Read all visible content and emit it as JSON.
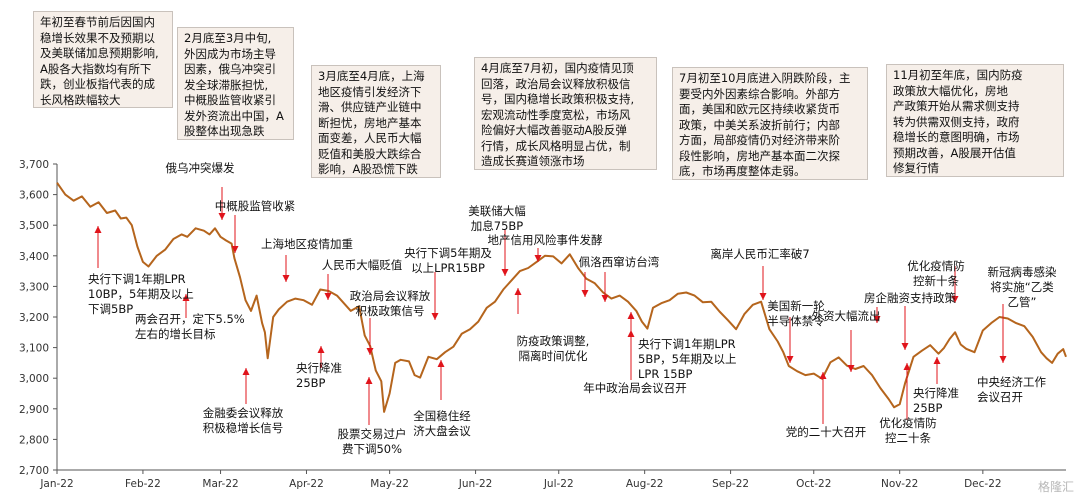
{
  "boxes": [
    {
      "text": "年初至春节前后因国内\n稳增长效果不及预期以\n及美联储加息预期影响,\nA股各大指数均有所下\n跌，创业板指代表的成\n长风格跌幅较大"
    },
    {
      "text": "2月底至3月中旬,\n外因成为市场主导\n因素，俄乌冲突引\n发全球滞胀担忧,\n中概股监管收紧引\n发外资流出中国，A\n股整体出现急跌"
    },
    {
      "text": "3月底至4月底，上海\n地区疫情引发经济下\n滑、供应链产业链中\n断担忧，房地产基本\n面变差，人民币大幅\n贬值和美股大跌综合\n影响，A股恐慌下跌"
    },
    {
      "text": "4月底至7月初，国内疫情见顶\n回落，政治局会议释放积极信\n号，国内稳增长政策积极支持,\n宏观流动性季度宽松，市场风\n险偏好大幅改善驱动A股反弹\n行情，成长风格明显占优，制\n造成长赛道领涨市场"
    },
    {
      "text": "7月初至10月底进入阴跌阶段，主\n要受内外因素综合影响。外部方\n面，美国和欧元区持续收紧货币\n政策，中美关系波折前行；内部\n方面，局部疫情仍对经济带来阶\n段性影响，房地产基本面二次探\n底，市场再度整体走弱。"
    },
    {
      "text": "11月初至年底，国内防疫\n政策放大幅优化，房地\n产政策开始从需求侧支持\n转为供需双侧支持，政府\n稳增长的意图明确，市场\n预期改善，A股展开估值\n修复行情"
    }
  ],
  "annotations": [
    {
      "lines": [
        "俄乌冲突爆发"
      ]
    },
    {
      "lines": [
        "中概股监管收紧"
      ]
    },
    {
      "lines": [
        "上海地区疫情加重"
      ]
    },
    {
      "lines": [
        "人民币大幅贬值"
      ]
    },
    {
      "lines": [
        "政治局会议释放",
        "积极政策信号"
      ]
    },
    {
      "lines": [
        "央行下调5年期及",
        "以上LPR15BP"
      ]
    },
    {
      "lines": [
        "美联储大幅",
        "加息75BP"
      ]
    },
    {
      "lines": [
        "地产信用风险事件发酵"
      ]
    },
    {
      "lines": [
        "佩洛西窜访台湾"
      ]
    },
    {
      "lines": [
        "离岸人民币汇率破7"
      ]
    },
    {
      "lines": [
        "美国新一轮",
        "半导体禁令"
      ]
    },
    {
      "lines": [
        "外资大幅流出"
      ]
    },
    {
      "lines": [
        "房企融资支持政策"
      ]
    },
    {
      "lines": [
        "优化疫情防",
        "控新十条"
      ]
    },
    {
      "lines": [
        "新冠病毒感染",
        "将实施“乙类",
        "乙管”"
      ]
    },
    {
      "lines": [
        "央行下调1年期LPR",
        "10BP，5年期及以上",
        "下调5BP"
      ]
    },
    {
      "lines": [
        "两会召开，定下5.5%",
        "左右的增长目标"
      ]
    },
    {
      "lines": [
        "金融委会议释放",
        "积极稳增长信号"
      ]
    },
    {
      "lines": [
        "央行降准",
        "25BP"
      ]
    },
    {
      "lines": [
        "股票交易过户",
        "费下调50%"
      ]
    },
    {
      "lines": [
        "全国稳住经",
        "济大盘会议"
      ]
    },
    {
      "lines": [
        "防疫政策调整,",
        "隔离时间优化"
      ]
    },
    {
      "lines": [
        "央行下调1年期LPR",
        "5BP，5年期及以上",
        "LPR 15BP"
      ]
    },
    {
      "lines": [
        "年中政治局会议召开"
      ]
    },
    {
      "lines": [
        "党的二十大召开"
      ]
    },
    {
      "lines": [
        "优化疫情防",
        "控二十条"
      ]
    },
    {
      "lines": [
        "央行降准",
        "25BP"
      ]
    },
    {
      "lines": [
        "中央经济工作",
        "会议召开"
      ]
    }
  ],
  "chart_data": {
    "type": "line",
    "title": "",
    "xlabel": "",
    "ylabel": "",
    "line_color": "#b5651d",
    "arrow_color": "#e0141b",
    "ylim": [
      2700,
      3700
    ],
    "y_ticks": [
      "3,700",
      "3,600",
      "3,500",
      "3,400",
      "3,300",
      "3,200",
      "3,100",
      "3,000",
      "2,900",
      "2,800",
      "2,700"
    ],
    "y_tick_values": [
      3700,
      3600,
      3500,
      3400,
      3300,
      3200,
      3100,
      3000,
      2900,
      2800,
      2700
    ],
    "x_ticks": [
      "Jan-22",
      "Feb-22",
      "Mar-22",
      "Apr-22",
      "May-22",
      "Jun-22",
      "Jul-22",
      "Aug-22",
      "Sep-22",
      "Oct-22",
      "Nov-22",
      "Dec-22"
    ],
    "x_tick_values": [
      0,
      31,
      59,
      90,
      120,
      151,
      181,
      212,
      243,
      273,
      304,
      334
    ],
    "x_domain": [
      0,
      364
    ],
    "series": [
      {
        "values": [
          [
            0,
            3639
          ],
          [
            3,
            3600
          ],
          [
            6,
            3580
          ],
          [
            9,
            3594
          ],
          [
            12,
            3560
          ],
          [
            15,
            3575
          ],
          [
            18,
            3540
          ],
          [
            21,
            3548
          ],
          [
            23,
            3522
          ],
          [
            25,
            3525
          ],
          [
            27,
            3500
          ],
          [
            29,
            3430
          ],
          [
            31,
            3380
          ],
          [
            33,
            3365
          ],
          [
            36,
            3400
          ],
          [
            39,
            3420
          ],
          [
            42,
            3455
          ],
          [
            45,
            3470
          ],
          [
            47,
            3462
          ],
          [
            50,
            3490
          ],
          [
            53,
            3482
          ],
          [
            55,
            3470
          ],
          [
            57,
            3490
          ],
          [
            59,
            3462
          ],
          [
            61,
            3450
          ],
          [
            63,
            3440
          ],
          [
            64,
            3392
          ],
          [
            66,
            3330
          ],
          [
            68,
            3255
          ],
          [
            70,
            3220
          ],
          [
            72,
            3270
          ],
          [
            74,
            3180
          ],
          [
            75,
            3150
          ],
          [
            76,
            3065
          ],
          [
            78,
            3200
          ],
          [
            80,
            3225
          ],
          [
            83,
            3250
          ],
          [
            86,
            3260
          ],
          [
            89,
            3255
          ],
          [
            92,
            3240
          ],
          [
            95,
            3290
          ],
          [
            98,
            3285
          ],
          [
            101,
            3270
          ],
          [
            103,
            3250
          ],
          [
            106,
            3220
          ],
          [
            109,
            3235
          ],
          [
            111,
            3140
          ],
          [
            113,
            3105
          ],
          [
            115,
            3025
          ],
          [
            117,
            2990
          ],
          [
            118,
            2890
          ],
          [
            120,
            2950
          ],
          [
            122,
            3050
          ],
          [
            124,
            3060
          ],
          [
            127,
            3055
          ],
          [
            129,
            3010
          ],
          [
            131,
            3002
          ],
          [
            134,
            3070
          ],
          [
            137,
            3062
          ],
          [
            140,
            3085
          ],
          [
            143,
            3103
          ],
          [
            146,
            3145
          ],
          [
            149,
            3160
          ],
          [
            152,
            3185
          ],
          [
            155,
            3230
          ],
          [
            158,
            3250
          ],
          [
            161,
            3290
          ],
          [
            164,
            3320
          ],
          [
            167,
            3350
          ],
          [
            170,
            3360
          ],
          [
            173,
            3380
          ],
          [
            176,
            3400
          ],
          [
            179,
            3398
          ],
          [
            182,
            3375
          ],
          [
            185,
            3405
          ],
          [
            188,
            3360
          ],
          [
            191,
            3325
          ],
          [
            194,
            3310
          ],
          [
            197,
            3280
          ],
          [
            200,
            3260
          ],
          [
            203,
            3270
          ],
          [
            206,
            3250
          ],
          [
            209,
            3220
          ],
          [
            211,
            3185
          ],
          [
            213,
            3162
          ],
          [
            215,
            3230
          ],
          [
            218,
            3245
          ],
          [
            221,
            3255
          ],
          [
            224,
            3276
          ],
          [
            227,
            3280
          ],
          [
            230,
            3270
          ],
          [
            233,
            3248
          ],
          [
            236,
            3250
          ],
          [
            239,
            3218
          ],
          [
            242,
            3190
          ],
          [
            245,
            3160
          ],
          [
            248,
            3210
          ],
          [
            251,
            3240
          ],
          [
            254,
            3250
          ],
          [
            257,
            3160
          ],
          [
            260,
            3120
          ],
          [
            262,
            3085
          ],
          [
            264,
            3040
          ],
          [
            267,
            3023
          ],
          [
            270,
            3010
          ],
          [
            273,
            3015
          ],
          [
            276,
            2998
          ],
          [
            279,
            3052
          ],
          [
            282,
            3068
          ],
          [
            285,
            3041
          ],
          [
            288,
            3030
          ],
          [
            291,
            3040
          ],
          [
            294,
            3010
          ],
          [
            297,
            2968
          ],
          [
            300,
            2932
          ],
          [
            302,
            2905
          ],
          [
            304,
            2915
          ],
          [
            306,
            2985
          ],
          [
            309,
            3070
          ],
          [
            312,
            3090
          ],
          [
            315,
            3108
          ],
          [
            318,
            3080
          ],
          [
            320,
            3099
          ],
          [
            322,
            3128
          ],
          [
            324,
            3150
          ],
          [
            326,
            3110
          ],
          [
            328,
            3096
          ],
          [
            331,
            3085
          ],
          [
            334,
            3156
          ],
          [
            337,
            3180
          ],
          [
            340,
            3200
          ],
          [
            343,
            3195
          ],
          [
            346,
            3180
          ],
          [
            349,
            3170
          ],
          [
            352,
            3135
          ],
          [
            355,
            3085
          ],
          [
            357,
            3065
          ],
          [
            359,
            3050
          ],
          [
            361,
            3080
          ],
          [
            363,
            3095
          ],
          [
            364,
            3070
          ]
        ]
      }
    ]
  }
}
